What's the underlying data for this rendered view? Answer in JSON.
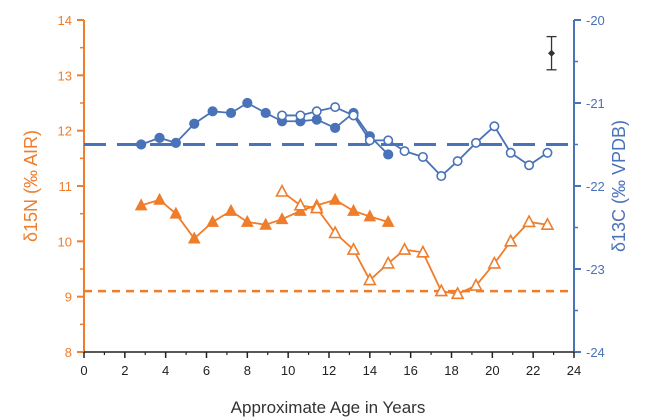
{
  "colors": {
    "orange": "#ef7d2b",
    "blue": "#4a72b8",
    "axis": "#222222"
  },
  "chart_data": {
    "type": "line",
    "xlabel": "Approximate Age in Years",
    "ylabel_left": "δ15N (‰ AIR)",
    "ylabel_right": "δ13C (‰ VPDB)",
    "xlim": [
      0,
      24
    ],
    "ylim_left": [
      8,
      14
    ],
    "ylim_right": [
      -24,
      -20
    ],
    "x_ticks": [
      0,
      2,
      4,
      6,
      8,
      10,
      12,
      14,
      16,
      18,
      20,
      22,
      24
    ],
    "y_left_ticks": [
      8,
      9,
      10,
      11,
      12,
      13,
      14
    ],
    "y_right_ticks": [
      -24,
      -23,
      -22,
      -21,
      -20
    ],
    "grid": false,
    "reference_lines": [
      {
        "axis": "left",
        "y": 9.1,
        "style": "dashed",
        "color": "#ef7d2b"
      },
      {
        "axis": "right",
        "y": -21.5,
        "style": "dashed",
        "color": "#4a72b8"
      }
    ],
    "error_bar": {
      "axis": "right",
      "x": 22.9,
      "y": -20.4,
      "err": 0.2
    },
    "series": [
      {
        "axis": "left",
        "marker": "filled-triangle",
        "color": "#ef7d2b",
        "x": [
          2.8,
          3.7,
          4.5,
          5.4,
          6.3,
          7.2,
          8.0,
          8.9,
          9.7,
          10.6,
          11.4,
          12.3,
          13.2,
          14.0,
          14.9
        ],
        "y": [
          10.65,
          10.75,
          10.5,
          10.05,
          10.35,
          10.55,
          10.35,
          10.3,
          10.4,
          10.55,
          10.65,
          10.75,
          10.55,
          10.45,
          10.35
        ]
      },
      {
        "axis": "left",
        "marker": "open-triangle",
        "color": "#ef7d2b",
        "x": [
          9.7,
          10.6,
          11.4,
          12.3,
          13.2,
          14.0,
          14.9,
          15.7,
          16.6,
          17.5,
          18.3,
          19.2,
          20.1,
          20.9,
          21.8,
          22.7
        ],
        "y": [
          10.9,
          10.65,
          10.6,
          10.15,
          9.85,
          9.3,
          9.6,
          9.85,
          9.8,
          9.1,
          9.05,
          9.2,
          9.6,
          10.0,
          10.35,
          10.3
        ]
      },
      {
        "axis": "right",
        "marker": "filled-circle",
        "color": "#4a72b8",
        "x": [
          2.8,
          3.7,
          4.5,
          5.4,
          6.3,
          7.2,
          8.0,
          8.9,
          9.7,
          10.6,
          11.4,
          12.3,
          13.2,
          14.0,
          14.9
        ],
        "y": [
          -21.5,
          -21.42,
          -21.48,
          -21.25,
          -21.1,
          -21.12,
          -21.0,
          -21.12,
          -21.22,
          -21.22,
          -21.2,
          -21.3,
          -21.12,
          -21.4,
          -21.62
        ]
      },
      {
        "axis": "right",
        "marker": "open-circle",
        "color": "#4a72b8",
        "x": [
          9.7,
          10.6,
          11.4,
          12.3,
          13.2,
          14.0,
          14.9,
          15.7,
          16.6,
          17.5,
          18.3,
          19.2,
          20.1,
          20.9,
          21.8,
          22.7
        ],
        "y": [
          -21.15,
          -21.15,
          -21.1,
          -21.05,
          -21.15,
          -21.45,
          -21.45,
          -21.58,
          -21.65,
          -21.88,
          -21.7,
          -21.48,
          -21.28,
          -21.6,
          -21.75,
          -21.6
        ]
      }
    ]
  }
}
